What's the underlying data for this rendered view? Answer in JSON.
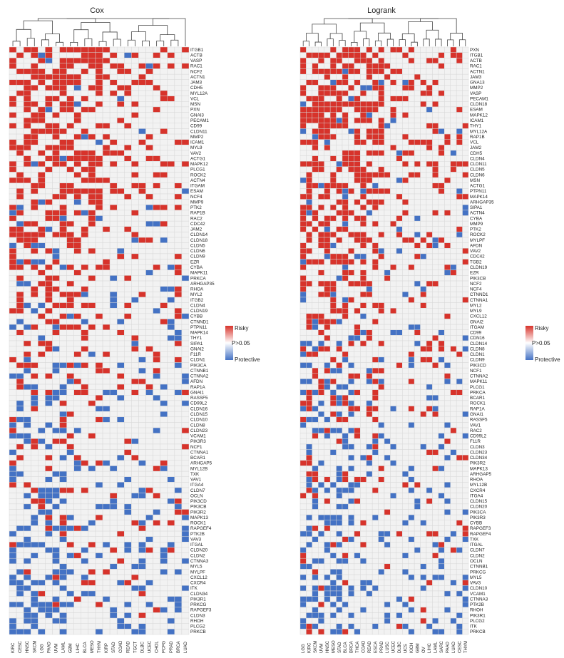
{
  "colors": {
    "risky": "#d7332b",
    "ns": "#f2f2f2",
    "protective": "#4472c4",
    "grid": "#d6d6d6"
  },
  "legend": {
    "risky": "Risky",
    "ns": "P>0.05",
    "protective": "Protective"
  },
  "chart_data": [
    {
      "type": "heatmap",
      "title": "Cox",
      "columns": [
        "KIRC",
        "CESC",
        "HNSC",
        "SKCM",
        "LGG",
        "PAAD",
        "UVM",
        "LAML",
        "GBM",
        "LIHC",
        "BLCA",
        "MESO",
        "THYM",
        "KIRP",
        "STAD",
        "COAD",
        "READ",
        "TGCT",
        "DLBC",
        "UCEC",
        "CHOL",
        "PCPG",
        "PRAD",
        "BRCA",
        "LUAD"
      ],
      "genes": [
        "ITGB1",
        "ACTB",
        "VASP",
        "RAC1",
        "NCF2",
        "ACTN1",
        "JAM3",
        "CDH5",
        "MYL12A",
        "VCL",
        "MSN",
        "PXN",
        "GNAI3",
        "PECAM1",
        "CD99",
        "CLDN11",
        "MMP2",
        "ICAM1",
        "MYL9",
        "VAV2",
        "ACTG1",
        "MAPK12",
        "PLCG1",
        "ROCK2",
        "ACTN4",
        "ITGAM",
        "ESAM",
        "NCF4",
        "MMP9",
        "PTK2",
        "RAP1B",
        "RAC2",
        "CDC42",
        "JAM2",
        "CLDN14",
        "CLDN18",
        "CLDN5",
        "CLDN6",
        "CLDN9",
        "EZR",
        "CYBA",
        "MAPK11",
        "PRKCA",
        "ARHGAP35",
        "RHOA",
        "MYL2",
        "ITGB2",
        "CLDN4",
        "CLDN19",
        "CYBB",
        "CTNND1",
        "PTPN11",
        "MAPK14",
        "THY1",
        "SIPA1",
        "GNAI2",
        "F11R",
        "CLDN1",
        "PIK3CA",
        "CTNNB1",
        "CTNNA2",
        "AFDN",
        "RAP1A",
        "GNAI1",
        "RASSF5",
        "CD99L2",
        "CLDN16",
        "CLDN15",
        "CLDN10",
        "CLDN8",
        "CLDN23",
        "VCAM1",
        "PIK3R3",
        "NCF1",
        "CTNNA1",
        "BCAR1",
        "ARHGAP5",
        "MYL12B",
        "TXK",
        "VAV1",
        "ITGA4",
        "CLDN7",
        "OCLN",
        "PIK3CD",
        "PIK3CB",
        "PIK3R2",
        "MAPK13",
        "ROCK1",
        "RAPGEF4",
        "PTK2B",
        "VAV3",
        "ITGAL",
        "CLDN20",
        "CLDN2",
        "CTNNA3",
        "MYL5",
        "MYLPF",
        "CXCL12",
        "CXCR4",
        "ITK",
        "CLDN34",
        "PIK3R1",
        "PRKCG",
        "RAPGEF3",
        "CLDN3",
        "RHOH",
        "PLCG2",
        "PRKCB"
      ],
      "seed": 17
    },
    {
      "type": "heatmap",
      "title": "Logrank",
      "columns": [
        "LGG",
        "KIRC",
        "SKCM",
        "UVM",
        "HNSC",
        "MESO",
        "STAD",
        "BLCA",
        "BRCA",
        "THCA",
        "COAD",
        "READ",
        "ESCA",
        "PRAD",
        "LUSC",
        "UCEC",
        "DLBC",
        "UCS",
        "KICH",
        "GBM",
        "OV",
        "LIHC",
        "LAML",
        "SARC",
        "PAAD",
        "LUAD",
        "CESC",
        "THYM"
      ],
      "genes": [
        "PXN",
        "ITGB1",
        "ACTB",
        "RAC1",
        "ACTN1",
        "JAM3",
        "GNA13",
        "MMP2",
        "VASP",
        "PECAM1",
        "CLDN18",
        "ESAM",
        "MAPK12",
        "ICAM1",
        "THY1",
        "MYL12A",
        "RAP1B",
        "VCL",
        "JAM2",
        "CDH5",
        "CLDN4",
        "CLDN11",
        "CLDN5",
        "CLDN6",
        "MSN",
        "ACTG1",
        "PTPN11",
        "MAPK14",
        "ARHGAP35",
        "SIPA1",
        "ACTN4",
        "CYBA",
        "MMP9",
        "PTK2",
        "ROCK2",
        "MYLPF",
        "AFDN",
        "VAV2",
        "CDC42",
        "TGB2",
        "CLDN19",
        "EZR",
        "PIK3CB",
        "NCF2",
        "NCF4",
        "CTNND1",
        "CTNNA1",
        "MYL2",
        "MYL9",
        "CXCL12",
        "GNAI2",
        "ITGAM",
        "CD99",
        "CDN16",
        "CLDN14",
        "CLDN8",
        "CLDN1",
        "CLDN9",
        "PIK3CD",
        "NCF1",
        "CTNNA2",
        "MAPK11",
        "PLCG1",
        "PRKCA",
        "BCAR1",
        "ROCK1",
        "RAP1A",
        "GNAI1",
        "RASSF5",
        "VAV1",
        "RAC2",
        "CD99L2",
        "F11R",
        "CLDN3",
        "CLDN23",
        "CLDN34",
        "PIK3R2",
        "MAPK13",
        "ARHGAP5",
        "RHOA",
        "MYL12B",
        "CXCR4",
        "ITGA4",
        "CLDN15",
        "CLDN20",
        "PIK3CA",
        "PIK3R3",
        "CYBB",
        "RAPGEF3",
        "RAPGEF4",
        "TXK",
        "ITGAL",
        "CLDN7",
        "CLDN2",
        "OCLN",
        "CTNNB1",
        "PRKCG",
        "MYL5",
        "VAV3",
        "CLDN10",
        "VCAM1",
        "CTNNA3",
        "PTK2B",
        "RHOH",
        "PIK3R1",
        "PLCG2",
        "ITK",
        "PRKCB"
      ],
      "seed": 29
    }
  ]
}
